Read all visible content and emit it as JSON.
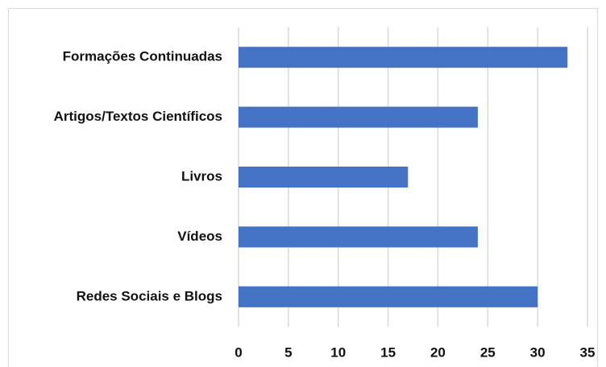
{
  "chart_data": {
    "type": "barh",
    "categories": [
      "Formações Continuadas",
      "Artigos/Textos Científicos",
      "Livros",
      "Vídeos",
      "Redes Sociais e Blogs"
    ],
    "values": [
      33,
      24,
      17,
      24,
      30
    ],
    "color": "#4472c4",
    "xlim": [
      0,
      35
    ],
    "xticks": [
      0,
      5,
      10,
      15,
      20,
      25,
      30,
      35
    ],
    "grid": true
  }
}
